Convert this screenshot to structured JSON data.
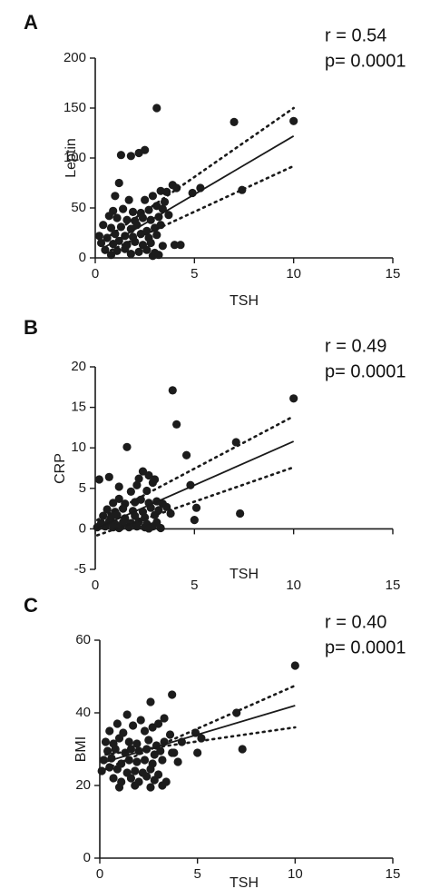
{
  "colors": {
    "ink": "#1a1a1a",
    "point": "#1c1c1c"
  },
  "chart_data": [
    {
      "type": "scatter",
      "panel_label": "A",
      "annotation_r": "r = 0.54",
      "annotation_p": "p= 0.0001",
      "xlabel": "TSH",
      "ylabel": "Leptin",
      "xlim": [
        0,
        15
      ],
      "ylim": [
        0,
        200
      ],
      "xticks": [
        0,
        5,
        10,
        15
      ],
      "yticks": [
        0,
        50,
        100,
        150,
        200
      ],
      "grid": false,
      "fit_line": {
        "x": [
          0.5,
          10
        ],
        "y": [
          11,
          122
        ]
      },
      "ci_upper": {
        "x": [
          0.5,
          10
        ],
        "y": [
          19,
          150
        ]
      },
      "ci_lower": {
        "x": [
          0.5,
          10
        ],
        "y": [
          5,
          92
        ]
      },
      "points": [
        [
          3.1,
          150
        ],
        [
          7,
          136
        ],
        [
          10,
          137
        ],
        [
          2.5,
          108
        ],
        [
          1.3,
          103
        ],
        [
          1.8,
          102
        ],
        [
          2.2,
          105
        ],
        [
          3.9,
          73
        ],
        [
          4.1,
          70
        ],
        [
          3.3,
          67
        ],
        [
          3.6,
          66
        ],
        [
          4.9,
          65
        ],
        [
          5.3,
          70
        ],
        [
          7.4,
          68
        ],
        [
          1.2,
          75
        ],
        [
          1.0,
          62
        ],
        [
          1.7,
          58
        ],
        [
          2.5,
          58
        ],
        [
          2.9,
          62
        ],
        [
          3.5,
          56
        ],
        [
          0.9,
          47
        ],
        [
          1.4,
          49
        ],
        [
          1.9,
          46
        ],
        [
          2.3,
          45
        ],
        [
          2.7,
          48
        ],
        [
          3.1,
          52
        ],
        [
          3.4,
          49
        ],
        [
          0.7,
          42
        ],
        [
          1.1,
          40
        ],
        [
          1.6,
          38
        ],
        [
          2.0,
          37
        ],
        [
          2.4,
          40
        ],
        [
          2.8,
          38
        ],
        [
          3.2,
          41
        ],
        [
          3.7,
          43
        ],
        [
          0.4,
          33
        ],
        [
          0.8,
          30
        ],
        [
          1.3,
          31
        ],
        [
          1.8,
          29
        ],
        [
          2.1,
          33
        ],
        [
          2.6,
          27
        ],
        [
          3.0,
          30
        ],
        [
          3.3,
          33
        ],
        [
          0.2,
          22
        ],
        [
          0.6,
          20
        ],
        [
          1.0,
          24
        ],
        [
          1.5,
          22
        ],
        [
          1.9,
          21
        ],
        [
          2.3,
          24
        ],
        [
          2.7,
          20
        ],
        [
          3.1,
          23
        ],
        [
          0.3,
          15
        ],
        [
          0.9,
          14
        ],
        [
          1.2,
          17
        ],
        [
          1.6,
          13
        ],
        [
          2.0,
          16
        ],
        [
          2.4,
          13
        ],
        [
          2.8,
          15
        ],
        [
          3.4,
          12
        ],
        [
          4.0,
          13
        ],
        [
          4.3,
          13
        ],
        [
          0.5,
          8
        ],
        [
          1.1,
          7
        ],
        [
          1.5,
          9
        ],
        [
          2.2,
          6
        ],
        [
          2.6,
          8
        ],
        [
          3.0,
          5
        ],
        [
          1.8,
          4
        ],
        [
          0.8,
          3
        ],
        [
          2.9,
          2
        ],
        [
          3.2,
          3
        ]
      ]
    },
    {
      "type": "scatter",
      "panel_label": "B",
      "annotation_r": "r = 0.49",
      "annotation_p": "p= 0.0001",
      "xlabel": "TSH",
      "ylabel": "CRP",
      "xlim": [
        0,
        15
      ],
      "ylim": [
        -5,
        20
      ],
      "xticks": [
        0,
        5,
        10,
        15
      ],
      "yticks": [
        -5,
        0,
        5,
        10,
        15,
        20
      ],
      "grid": false,
      "fit_line": {
        "x": [
          0.1,
          10
        ],
        "y": [
          0.1,
          10.8
        ]
      },
      "ci_upper": {
        "x": [
          0.1,
          10
        ],
        "y": [
          1.1,
          13.9
        ]
      },
      "ci_lower": {
        "x": [
          0.1,
          10
        ],
        "y": [
          -0.8,
          7.6
        ]
      },
      "points": [
        [
          3.9,
          17.1
        ],
        [
          10,
          16.1
        ],
        [
          4.1,
          12.9
        ],
        [
          1.6,
          10.1
        ],
        [
          4.6,
          9.1
        ],
        [
          7.1,
          10.7
        ],
        [
          2.4,
          7.1
        ],
        [
          2.7,
          6.6
        ],
        [
          0.2,
          6.1
        ],
        [
          0.7,
          6.4
        ],
        [
          2.2,
          6.2
        ],
        [
          3.0,
          6.1
        ],
        [
          1.2,
          5.2
        ],
        [
          2.1,
          5.4
        ],
        [
          2.9,
          5.7
        ],
        [
          4.8,
          5.4
        ],
        [
          1.8,
          4.6
        ],
        [
          2.6,
          4.7
        ],
        [
          0.9,
          3.2
        ],
        [
          1.2,
          3.7
        ],
        [
          1.5,
          3.1
        ],
        [
          2.0,
          3.3
        ],
        [
          2.3,
          3.6
        ],
        [
          2.7,
          3.2
        ],
        [
          3.1,
          3.4
        ],
        [
          3.4,
          3.1
        ],
        [
          0.6,
          2.4
        ],
        [
          1.0,
          2.1
        ],
        [
          1.4,
          2.5
        ],
        [
          1.9,
          2.2
        ],
        [
          2.4,
          2.1
        ],
        [
          2.8,
          2.6
        ],
        [
          3.2,
          2.3
        ],
        [
          3.6,
          2.7
        ],
        [
          5.1,
          2.6
        ],
        [
          0.4,
          1.6
        ],
        [
          0.8,
          1.4
        ],
        [
          1.1,
          1.7
        ],
        [
          1.5,
          1.3
        ],
        [
          2.0,
          1.6
        ],
        [
          2.5,
          1.4
        ],
        [
          3.0,
          1.7
        ],
        [
          3.8,
          1.9
        ],
        [
          7.3,
          1.9
        ],
        [
          0.3,
          0.7
        ],
        [
          0.7,
          0.9
        ],
        [
          1.0,
          0.6
        ],
        [
          1.4,
          0.8
        ],
        [
          1.8,
          0.7
        ],
        [
          2.2,
          0.9
        ],
        [
          2.6,
          0.6
        ],
        [
          3.1,
          0.8
        ],
        [
          5.0,
          1.1
        ],
        [
          0.1,
          0.2
        ],
        [
          0.5,
          0.3
        ],
        [
          0.9,
          0.2
        ],
        [
          1.3,
          0.3
        ],
        [
          1.7,
          0.2
        ],
        [
          2.1,
          0.3
        ],
        [
          2.5,
          0.2
        ],
        [
          2.9,
          0.3
        ],
        [
          3.3,
          0.1
        ],
        [
          1.2,
          0.1
        ],
        [
          2.7,
          0.05
        ]
      ]
    },
    {
      "type": "scatter",
      "panel_label": "C",
      "annotation_r": "r = 0.40",
      "annotation_p": "p= 0.0001",
      "xlabel": "TSH",
      "ylabel": "BMI",
      "xlim": [
        0,
        15
      ],
      "ylim": [
        0,
        60
      ],
      "xticks": [
        0,
        5,
        10,
        15
      ],
      "yticks": [
        0,
        20,
        40,
        60
      ],
      "grid": false,
      "fit_line": {
        "x": [
          0.3,
          10
        ],
        "y": [
          26.5,
          42
        ]
      },
      "ci_upper": {
        "x": [
          0.3,
          10
        ],
        "y": [
          24.5,
          47.5
        ]
      },
      "ci_lower": {
        "x": [
          0.3,
          10
        ],
        "y": [
          28.5,
          36
        ]
      },
      "points": [
        [
          10,
          53
        ],
        [
          3.7,
          45
        ],
        [
          2.6,
          43
        ],
        [
          7,
          40
        ],
        [
          1.4,
          39.5
        ],
        [
          3.3,
          38.5
        ],
        [
          2.1,
          38
        ],
        [
          0.9,
          37
        ],
        [
          1.7,
          36.5
        ],
        [
          2.7,
          36
        ],
        [
          3.0,
          37
        ],
        [
          0.5,
          35
        ],
        [
          1.2,
          34.5
        ],
        [
          2.3,
          35
        ],
        [
          3.6,
          34
        ],
        [
          4.9,
          34.5
        ],
        [
          0.3,
          32
        ],
        [
          0.7,
          31.5
        ],
        [
          1.0,
          33
        ],
        [
          1.5,
          32
        ],
        [
          1.9,
          31.5
        ],
        [
          2.5,
          32.5
        ],
        [
          2.9,
          31
        ],
        [
          3.3,
          32
        ],
        [
          4.2,
          32
        ],
        [
          5.2,
          33
        ],
        [
          0.4,
          29.5
        ],
        [
          0.8,
          30
        ],
        [
          1.3,
          29
        ],
        [
          1.6,
          30
        ],
        [
          2.0,
          29.5
        ],
        [
          2.4,
          30
        ],
        [
          2.8,
          28.5
        ],
        [
          3.1,
          29.5
        ],
        [
          3.8,
          29
        ],
        [
          0.2,
          27
        ],
        [
          0.6,
          27.5
        ],
        [
          1.1,
          26
        ],
        [
          1.5,
          27
        ],
        [
          1.9,
          26.5
        ],
        [
          2.3,
          27
        ],
        [
          2.7,
          26
        ],
        [
          3.2,
          27
        ],
        [
          4.0,
          26.5
        ],
        [
          0.1,
          24
        ],
        [
          0.5,
          25
        ],
        [
          0.9,
          24.5
        ],
        [
          1.4,
          23.5
        ],
        [
          1.8,
          24
        ],
        [
          2.2,
          23.5
        ],
        [
          2.6,
          24.5
        ],
        [
          3.0,
          23
        ],
        [
          7.3,
          30
        ],
        [
          0.7,
          22
        ],
        [
          1.1,
          21
        ],
        [
          1.6,
          22
        ],
        [
          2.0,
          21
        ],
        [
          2.4,
          22.5
        ],
        [
          2.8,
          21.5
        ],
        [
          3.4,
          21
        ],
        [
          3.7,
          29
        ],
        [
          1.0,
          19.5
        ],
        [
          1.8,
          20
        ],
        [
          2.6,
          19.5
        ],
        [
          3.2,
          20
        ],
        [
          5.0,
          29
        ]
      ]
    }
  ]
}
